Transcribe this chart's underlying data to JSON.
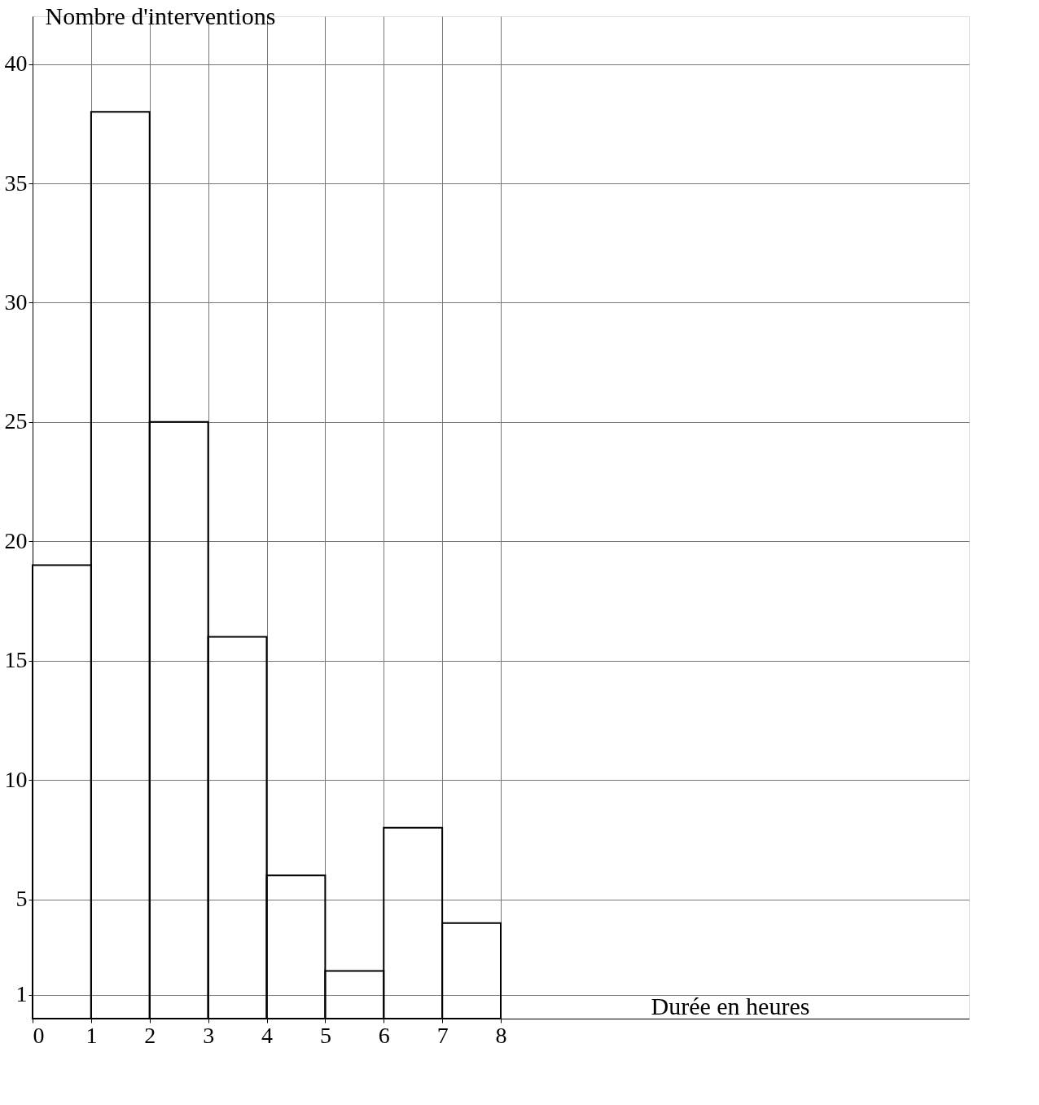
{
  "chart_data": {
    "type": "histogram",
    "xlabel": "Durée en heures",
    "ylabel": "Nombre d'interventions",
    "bins": [
      0,
      1,
      2,
      3,
      4,
      5,
      6,
      7,
      8
    ],
    "values": [
      19,
      38,
      25,
      16,
      6,
      2,
      8,
      4
    ],
    "color": "#000000",
    "xlim": [
      0,
      16
    ],
    "xticks": [
      0,
      1,
      2,
      3,
      4,
      5,
      6,
      7,
      8
    ],
    "ylim": [
      0,
      42
    ],
    "yticks": [
      1,
      5,
      10,
      15,
      20,
      25,
      30,
      35,
      40
    ],
    "grid": true
  }
}
